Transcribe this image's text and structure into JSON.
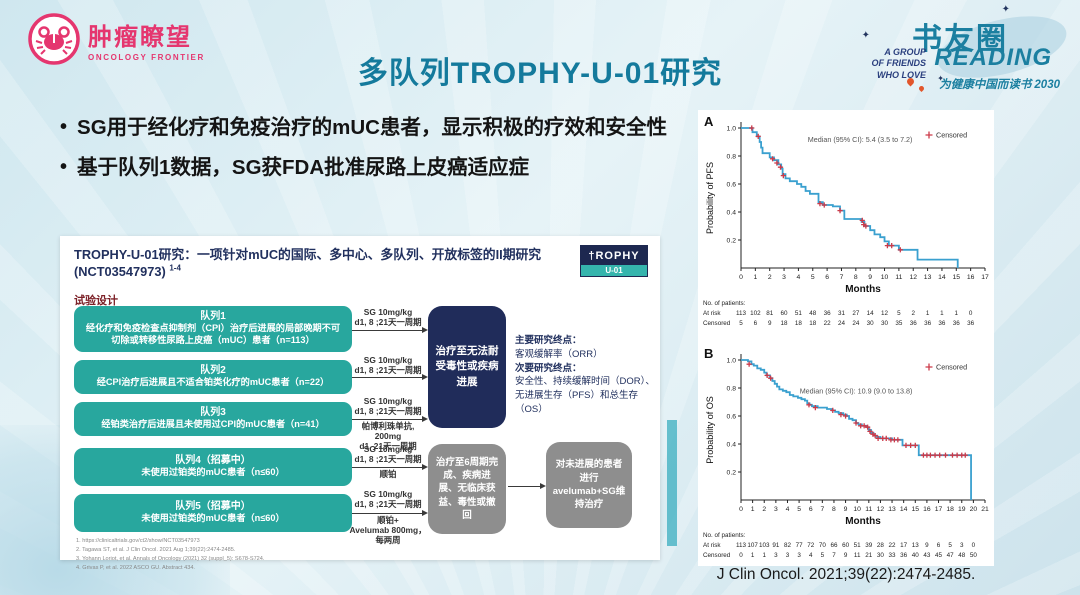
{
  "colors": {
    "title_teal": "#147a9c",
    "logo_pink": "#e5366f",
    "brand_teal": "#1b7fa0",
    "cohort_teal": "#28a79e",
    "navy_box": "#202c5a",
    "gray_box": "#8e8e8e",
    "km_line": "#3aa0cf",
    "censor_red": "#cc3a49"
  },
  "header": {
    "logo_left_cn": "肿瘤瞭望",
    "logo_left_en": "ONCOLOGY FRONTIER",
    "title": "多队列TROPHY-U-01研究",
    "logo_right_cn": "书友圈",
    "logo_right_reading": "READING",
    "logo_right_l1": "A GROUP",
    "logo_right_l2": "OF FRIENDS",
    "logo_right_l3": "WHO LOVE",
    "logo_right_slogan": "为健康中国而读书 2030"
  },
  "bullets": [
    "SG用于经化疗和免疫治疗的mUC患者，显示积极的疗效和安全性",
    "基于队列1数据，SG获FDA批准尿路上皮癌适应症"
  ],
  "figure": {
    "title": "TROPHY-U-01研究：一项针对mUC的国际、多中心、多队列、开放标签的II期研究 (NCT03547973) ",
    "title_sup": "1-4",
    "trophy_logo_top": "†ROPHY",
    "trophy_logo_bottom": "U-01",
    "design_label": "试验设计",
    "cohorts": [
      {
        "title": "队列1",
        "desc": "经化疗和免疫检查点抑制剂（CPI）治疗后进展的局部晚期不可切除或转移性尿路上皮癌（mUC）患者（n=113）"
      },
      {
        "title": "队列2",
        "desc": "经CPI治疗后进展且不适合铂类化疗的mUC患者（n=22）"
      },
      {
        "title": "队列3",
        "desc": "经铂类治疗后进展且未使用过CPI的mUC患者（n=41）"
      },
      {
        "title": "队列4（招募中）",
        "desc": "未使用过铂类的mUC患者（n≤60）"
      },
      {
        "title": "队列5（招募中）",
        "desc": "未使用过铂类的mUC患者（n≤60）"
      }
    ],
    "arms": [
      {
        "line1": "SG 10mg/kg",
        "line2": "d1, 8 ;21天一周期",
        "below1": "",
        "below2": ""
      },
      {
        "line1": "SG 10mg/kg",
        "line2": "d1, 8 ;21天一周期",
        "below1": "",
        "below2": ""
      },
      {
        "line1": "SG 10mg/kg",
        "line2": "d1, 8 ;21天一周期",
        "below1": "帕博利珠单抗, 200mg",
        "below2": "d1, 21天一周期"
      },
      {
        "line1": "SG 10mg/kg",
        "line2": "d1, 8 ;21天一周期",
        "below1": "顺铂",
        "below2": ""
      },
      {
        "line1": "SG 10mg/kg",
        "line2": "d1, 8 ;21天一周期",
        "below1": "顺铂+",
        "below2": "Avelumab 800mg，每两周"
      }
    ],
    "continue_box": "治疗至无法耐受毒性或疾病进展",
    "six_cycle_box": "治疗至6周期完成、疾病进展、无临床获益、毒性或撤回",
    "maintenance_box": "对未进展的患者进行avelumab+SG维持治疗",
    "endpoints": {
      "primary_label": "主要研究终点：",
      "primary": "客观缓解率（ORR）",
      "secondary_label": "次要研究终点：",
      "secondary": "安全性、持续缓解时间（DOR）、无进展生存（PFS）和总生存（OS）"
    },
    "footnotes": [
      "1. https://clinicaltrials.gov/ct2/show/NCT03547973",
      "2. Tagawa ST, et al. J Clin Oncol. 2021 Aug 1;39(22):2474-2485.",
      "3. Yohann Loriot, et al. Annals of Oncology (2021) 32 (suppl_5): S678-S724.",
      "4. Grivas P, et al. 2022 ASCO GU. Abstract 434."
    ]
  },
  "chart_data": [
    {
      "id": "A",
      "type": "line",
      "subtype": "kaplan-meier",
      "panel_label": "A",
      "ylabel": "Probability of PFS",
      "xlabel": "Months",
      "median_label": "Median (95% CI): 5.4 (3.5 to 7.2)",
      "median_pos": [
        8.3,
        0.9
      ],
      "legend_label": "Censored",
      "legend_position": "top-right",
      "grid": false,
      "xlim": [
        0,
        17
      ],
      "ylim": [
        0,
        1.0
      ],
      "yticks": [
        0.2,
        0.4,
        0.6,
        0.8,
        1.0
      ],
      "steps": [
        [
          0,
          1.0
        ],
        [
          0.8,
          0.97
        ],
        [
          1.1,
          0.94
        ],
        [
          1.3,
          0.9
        ],
        [
          1.4,
          0.86
        ],
        [
          1.5,
          0.82
        ],
        [
          2.0,
          0.79
        ],
        [
          2.3,
          0.77
        ],
        [
          2.6,
          0.74
        ],
        [
          2.8,
          0.71
        ],
        [
          2.9,
          0.67
        ],
        [
          3.1,
          0.64
        ],
        [
          3.4,
          0.62
        ],
        [
          3.9,
          0.6
        ],
        [
          4.2,
          0.58
        ],
        [
          4.5,
          0.55
        ],
        [
          4.8,
          0.53
        ],
        [
          5.4,
          0.47
        ],
        [
          5.7,
          0.45
        ],
        [
          6.4,
          0.44
        ],
        [
          6.9,
          0.41
        ],
        [
          7.2,
          0.35
        ],
        [
          8.4,
          0.33
        ],
        [
          8.6,
          0.3
        ],
        [
          9.0,
          0.27
        ],
        [
          9.3,
          0.24
        ],
        [
          9.7,
          0.22
        ],
        [
          10.0,
          0.19
        ],
        [
          10.3,
          0.16
        ],
        [
          11.0,
          0.13
        ],
        [
          12.3,
          0.06
        ],
        [
          15.1,
          0.0
        ]
      ],
      "censors": [
        [
          0.75,
          1.0
        ],
        [
          1.2,
          0.94
        ],
        [
          2.2,
          0.78
        ],
        [
          2.5,
          0.75
        ],
        [
          2.75,
          0.72
        ],
        [
          2.95,
          0.66
        ],
        [
          5.5,
          0.46
        ],
        [
          5.8,
          0.45
        ],
        [
          6.9,
          0.41
        ],
        [
          8.45,
          0.34
        ],
        [
          8.55,
          0.31
        ],
        [
          8.7,
          0.3
        ],
        [
          10.2,
          0.16
        ],
        [
          10.5,
          0.16
        ],
        [
          11.1,
          0.13
        ]
      ],
      "patients_label": "No. of patients:",
      "at_risk_label": "At risk",
      "censored_label": "Censored",
      "at_risk": [
        113,
        102,
        81,
        60,
        51,
        48,
        36,
        31,
        27,
        14,
        12,
        5,
        2,
        1,
        1,
        1,
        0
      ],
      "censored": [
        5,
        6,
        9,
        18,
        18,
        18,
        22,
        24,
        24,
        30,
        30,
        35,
        36,
        36,
        36,
        36,
        36
      ]
    },
    {
      "id": "B",
      "type": "line",
      "subtype": "kaplan-meier",
      "panel_label": "B",
      "ylabel": "Probability of OS",
      "xlabel": "Months",
      "median_label": "Median (95% CI): 10.9 (9.0 to 13.8)",
      "median_pos": [
        9.9,
        0.76
      ],
      "legend_label": "Censored",
      "legend_position": "top-right",
      "grid": false,
      "xlim": [
        0,
        21
      ],
      "ylim": [
        0,
        1.0
      ],
      "yticks": [
        0.2,
        0.4,
        0.6,
        0.8,
        1.0
      ],
      "steps": [
        [
          0,
          1.0
        ],
        [
          0.6,
          0.99
        ],
        [
          0.9,
          0.97
        ],
        [
          1.1,
          0.96
        ],
        [
          1.4,
          0.94
        ],
        [
          1.7,
          0.93
        ],
        [
          2.0,
          0.91
        ],
        [
          2.2,
          0.89
        ],
        [
          2.5,
          0.87
        ],
        [
          2.7,
          0.85
        ],
        [
          2.9,
          0.83
        ],
        [
          3.1,
          0.81
        ],
        [
          3.3,
          0.79
        ],
        [
          3.6,
          0.78
        ],
        [
          3.9,
          0.77
        ],
        [
          4.2,
          0.75
        ],
        [
          4.5,
          0.74
        ],
        [
          4.9,
          0.73
        ],
        [
          5.2,
          0.72
        ],
        [
          5.5,
          0.71
        ],
        [
          5.7,
          0.69
        ],
        [
          5.9,
          0.68
        ],
        [
          6.1,
          0.67
        ],
        [
          6.6,
          0.66
        ],
        [
          7.4,
          0.65
        ],
        [
          7.8,
          0.64
        ],
        [
          8.1,
          0.63
        ],
        [
          8.4,
          0.62
        ],
        [
          8.8,
          0.61
        ],
        [
          9.1,
          0.6
        ],
        [
          9.3,
          0.58
        ],
        [
          9.6,
          0.57
        ],
        [
          9.9,
          0.55
        ],
        [
          10.1,
          0.54
        ],
        [
          10.4,
          0.53
        ],
        [
          10.8,
          0.52
        ],
        [
          11.0,
          0.5
        ],
        [
          11.2,
          0.48
        ],
        [
          11.4,
          0.46
        ],
        [
          11.7,
          0.45
        ],
        [
          12.0,
          0.44
        ],
        [
          13.0,
          0.43
        ],
        [
          13.9,
          0.39
        ],
        [
          15.3,
          0.32
        ],
        [
          19.8,
          0.0
        ]
      ],
      "censors": [
        [
          0.7,
          0.97
        ],
        [
          2.25,
          0.89
        ],
        [
          2.55,
          0.87
        ],
        [
          5.85,
          0.68
        ],
        [
          6.4,
          0.66
        ],
        [
          7.9,
          0.64
        ],
        [
          8.6,
          0.61
        ],
        [
          9.0,
          0.6
        ],
        [
          9.9,
          0.55
        ],
        [
          10.3,
          0.53
        ],
        [
          10.6,
          0.53
        ],
        [
          10.9,
          0.52
        ],
        [
          11.1,
          0.49
        ],
        [
          11.35,
          0.47
        ],
        [
          11.55,
          0.46
        ],
        [
          11.8,
          0.44
        ],
        [
          12.2,
          0.44
        ],
        [
          12.5,
          0.44
        ],
        [
          12.9,
          0.43
        ],
        [
          13.2,
          0.43
        ],
        [
          13.5,
          0.43
        ],
        [
          14.2,
          0.39
        ],
        [
          14.6,
          0.39
        ],
        [
          15.0,
          0.39
        ],
        [
          15.7,
          0.32
        ],
        [
          16.0,
          0.32
        ],
        [
          16.3,
          0.32
        ],
        [
          16.7,
          0.32
        ],
        [
          17.1,
          0.32
        ],
        [
          17.6,
          0.32
        ],
        [
          18.2,
          0.32
        ],
        [
          18.6,
          0.32
        ],
        [
          19.0,
          0.32
        ],
        [
          19.3,
          0.32
        ]
      ],
      "patients_label": "No. of patients:",
      "at_risk_label": "At risk",
      "censored_label": "Censored",
      "at_risk": [
        113,
        107,
        103,
        91,
        82,
        77,
        72,
        70,
        66,
        60,
        51,
        39,
        28,
        22,
        17,
        13,
        9,
        6,
        5,
        3,
        0
      ],
      "censored": [
        0,
        1,
        1,
        3,
        3,
        3,
        4,
        5,
        7,
        9,
        11,
        21,
        30,
        33,
        36,
        40,
        43,
        45,
        47,
        48,
        50
      ]
    }
  ],
  "citation": "J Clin Oncol. 2021;39(22):2474-2485."
}
